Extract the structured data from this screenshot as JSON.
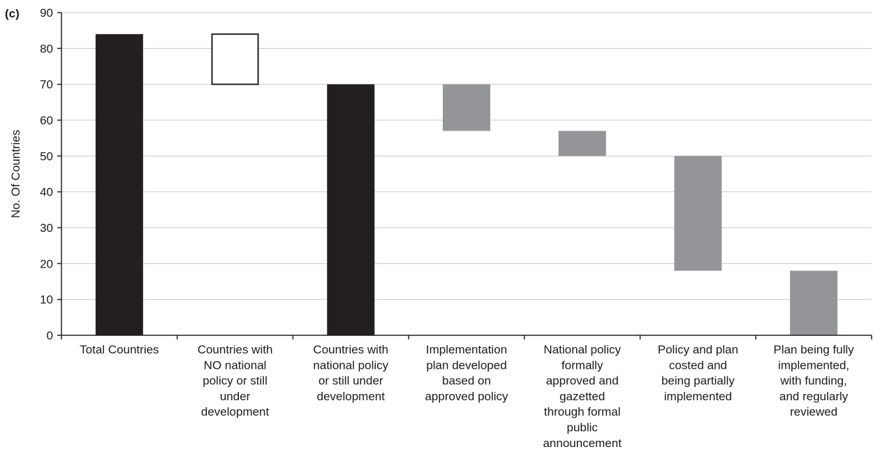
{
  "panel_label": "(c)",
  "chart_data": {
    "type": "bar",
    "subtype": "waterfall",
    "ylabel": "No. Of Countries",
    "xlabel": "",
    "ylim": [
      0,
      90
    ],
    "yticks": [
      0,
      10,
      20,
      30,
      40,
      50,
      60,
      70,
      80,
      90
    ],
    "grid": true,
    "categories": [
      [
        "Total Countries"
      ],
      [
        "Countries with",
        "NO national",
        "policy or still",
        "under",
        "development"
      ],
      [
        "Countries with",
        "national policy",
        "or still under",
        "development"
      ],
      [
        "Implementation",
        "plan developed",
        "based on",
        "approved policy"
      ],
      [
        "National policy",
        "formally",
        "approved and",
        "gazetted",
        "through formal",
        "public",
        "announcement"
      ],
      [
        "Policy and plan",
        "costed and",
        "being partially",
        "implemented"
      ],
      [
        "Plan being fully",
        "implemented,",
        "with funding,",
        "and regularly",
        "reviewed"
      ]
    ],
    "bars": [
      {
        "low": 0,
        "high": 84,
        "style": "total"
      },
      {
        "low": 70,
        "high": 84,
        "style": "outline"
      },
      {
        "low": 0,
        "high": 70,
        "style": "total"
      },
      {
        "low": 57,
        "high": 70,
        "style": "step"
      },
      {
        "low": 50,
        "high": 57,
        "style": "step"
      },
      {
        "low": 18,
        "high": 50,
        "style": "step"
      },
      {
        "low": 0,
        "high": 18,
        "style": "step"
      }
    ],
    "colors": {
      "total": "#231f20",
      "step": "#939598",
      "outline_fill": "#ffffff",
      "outline_stroke": "#231f20",
      "grid": "#c8c8c8",
      "axis": "#231f20"
    }
  }
}
